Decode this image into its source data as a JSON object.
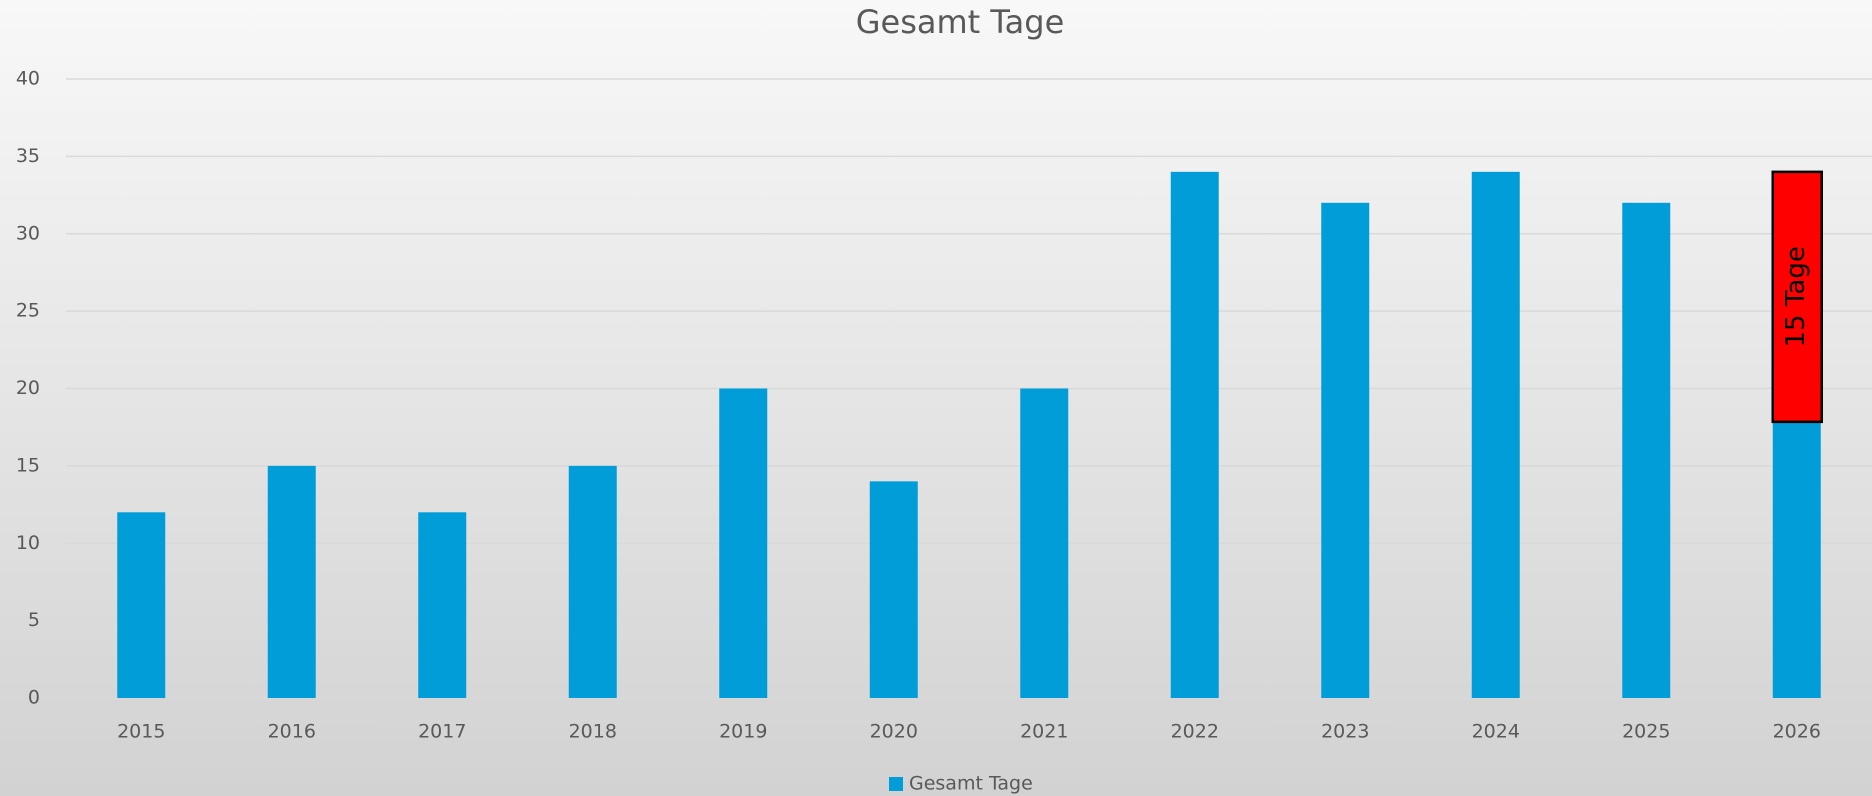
{
  "chart_data": {
    "type": "bar",
    "title": "Gesamt Tage",
    "categories": [
      "2015",
      "2016",
      "2017",
      "2018",
      "2019",
      "2020",
      "2021",
      "2022",
      "2023",
      "2024",
      "2025",
      "2026"
    ],
    "series": [
      {
        "name": "Gesamt Tage",
        "color": "#009dd9",
        "values": [
          12,
          15,
          12,
          15,
          20,
          14,
          20,
          34,
          32,
          34,
          32,
          34
        ]
      }
    ],
    "ylim": [
      0,
      40
    ],
    "yticks": [
      0,
      5,
      10,
      15,
      20,
      25,
      30,
      35,
      40
    ],
    "grid": true,
    "legend": "bottom",
    "annotation": "15 Tage"
  }
}
